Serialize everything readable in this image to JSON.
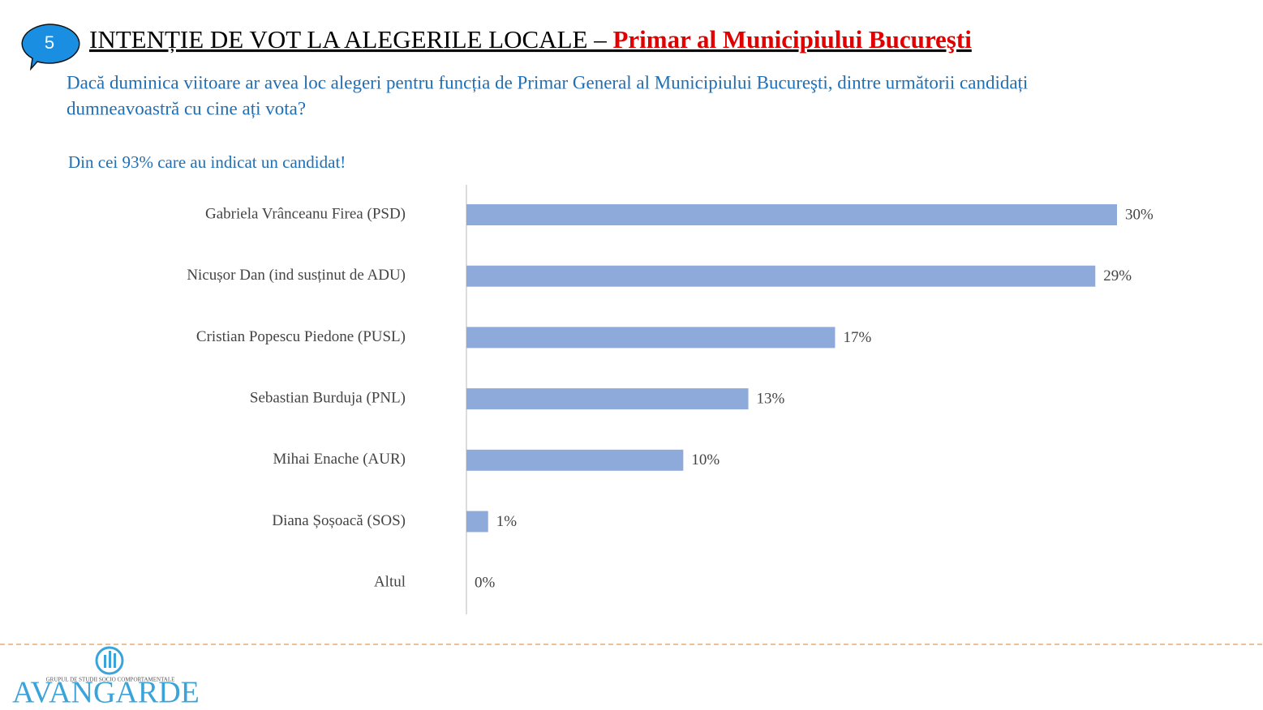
{
  "slide": {
    "badge": "5",
    "title": "INTENȚIE DE VOT LA ALEGERILE LOCALE – ",
    "title_highlight": "Primar al Municipiului Bucureşti",
    "question": [
      "Dacă duminica viitoare ar avea loc alegeri pentru funcția de Primar General al Municipiului Bucureşti, dintre următorii candidați",
      "dumneavoastră cu cine ați vota?"
    ],
    "note": "Din cei 93% care au indicat un candidat!",
    "logo_tagline": "GRUPUL DE STUDII SOCIO COMPORTAMENTALE",
    "logo": "AVANGARDE"
  },
  "chart_data": {
    "type": "hbar",
    "color": "#8eaadb",
    "categories": [
      "Gabriela Vrânceanu Firea (PSD)",
      "Nicușor Dan (ind susținut de ADU)",
      "Cristian Popescu Piedone (PUSL)",
      "Sebastian Burduja (PNL)",
      "Mihai Enache (AUR)",
      "Diana Șoșoacă (SOS)",
      "Altul"
    ],
    "values": [
      30,
      29,
      17,
      13,
      10,
      1,
      0
    ],
    "value_labels": [
      "30%",
      "29%",
      "17%",
      "13%",
      "10%",
      "1%",
      "0%"
    ]
  }
}
